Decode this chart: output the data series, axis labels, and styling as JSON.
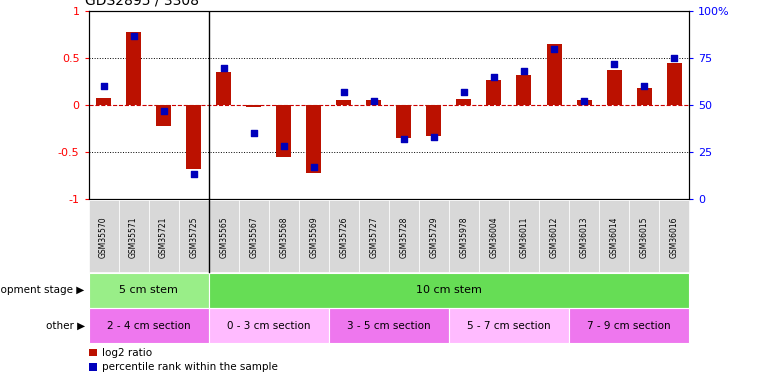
{
  "title": "GDS2895 / 3308",
  "samples": [
    "GSM35570",
    "GSM35571",
    "GSM35721",
    "GSM35725",
    "GSM35565",
    "GSM35567",
    "GSM35568",
    "GSM35569",
    "GSM35726",
    "GSM35727",
    "GSM35728",
    "GSM35729",
    "GSM35978",
    "GSM36004",
    "GSM36011",
    "GSM36012",
    "GSM36013",
    "GSM36014",
    "GSM36015",
    "GSM36016"
  ],
  "log2_ratio": [
    0.08,
    0.78,
    -0.22,
    -0.68,
    0.35,
    -0.02,
    -0.55,
    -0.72,
    0.05,
    0.05,
    -0.35,
    -0.33,
    0.06,
    0.27,
    0.32,
    0.65,
    0.05,
    0.37,
    0.18,
    0.45
  ],
  "percentile": [
    60,
    87,
    47,
    13,
    70,
    35,
    28,
    17,
    57,
    52,
    32,
    33,
    57,
    65,
    68,
    80,
    52,
    72,
    60,
    75
  ],
  "dev_stage_groups": [
    {
      "label": "5 cm stem",
      "start": 0,
      "end": 4,
      "color": "#99ee88"
    },
    {
      "label": "10 cm stem",
      "start": 4,
      "end": 20,
      "color": "#66dd55"
    }
  ],
  "other_groups": [
    {
      "label": "2 - 4 cm section",
      "start": 0,
      "end": 4,
      "color": "#ee77ee"
    },
    {
      "label": "0 - 3 cm section",
      "start": 4,
      "end": 8,
      "color": "#ffbbff"
    },
    {
      "label": "3 - 5 cm section",
      "start": 8,
      "end": 12,
      "color": "#ee77ee"
    },
    {
      "label": "5 - 7 cm section",
      "start": 12,
      "end": 16,
      "color": "#ffbbff"
    },
    {
      "label": "7 - 9 cm section",
      "start": 16,
      "end": 20,
      "color": "#ee77ee"
    }
  ],
  "bar_color": "#bb1100",
  "dot_color": "#0000bb",
  "ylim": [
    -1.0,
    1.0
  ],
  "y2lim": [
    0,
    100
  ],
  "ytick_vals": [
    -1,
    -0.5,
    0,
    0.5,
    1
  ],
  "ytick_labels": [
    "-1",
    "-0.5",
    "0",
    "0.5",
    "1"
  ],
  "y2tick_vals": [
    0,
    25,
    50,
    75,
    100
  ],
  "y2tick_labels": [
    "0",
    "25",
    "50",
    "75",
    "100%"
  ],
  "label_col_bg": "#dddddd",
  "group_sep_col": 4,
  "dev_stage_label": "development stage",
  "other_label": "other"
}
